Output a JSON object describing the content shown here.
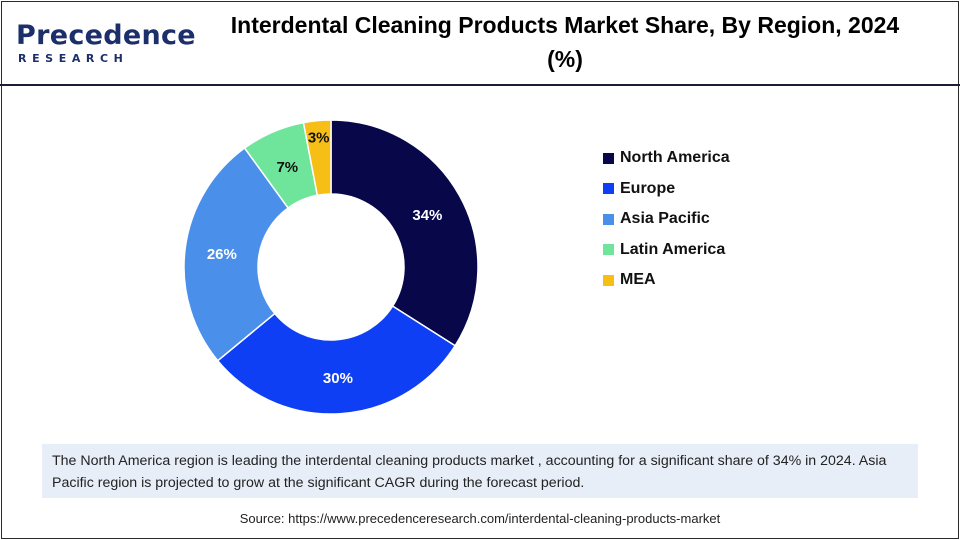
{
  "brand": {
    "name": "Precedence",
    "sub": "RESEARCH",
    "colors": {
      "primary": "#1c2f6b",
      "accent": "#2a64d8"
    }
  },
  "chart_data": {
    "type": "pie",
    "variant": "donut",
    "title": "Interdental Cleaning Products Market Share, By Region, 2024",
    "title_unit": "(%)",
    "categories": [
      "North America",
      "Europe",
      "Asia Pacific",
      "Latin America",
      "MEA"
    ],
    "values": [
      34,
      30,
      26,
      7,
      3
    ],
    "labels": [
      "34%",
      "30%",
      "26%",
      "7%",
      "3%"
    ],
    "colors": [
      "#07074a",
      "#0f3ff5",
      "#4a90ea",
      "#6fe59c",
      "#f7bf16"
    ],
    "legend_position": "right"
  },
  "note": {
    "text": "The North America region is leading the interdental cleaning products market  , accounting for a significant share of 34% in 2024. Asia Pacific region is projected to grow at the significant CAGR during the forecast period."
  },
  "source": {
    "text": "Source: https://www.precedenceresearch.com/interdental-cleaning-products-market"
  }
}
